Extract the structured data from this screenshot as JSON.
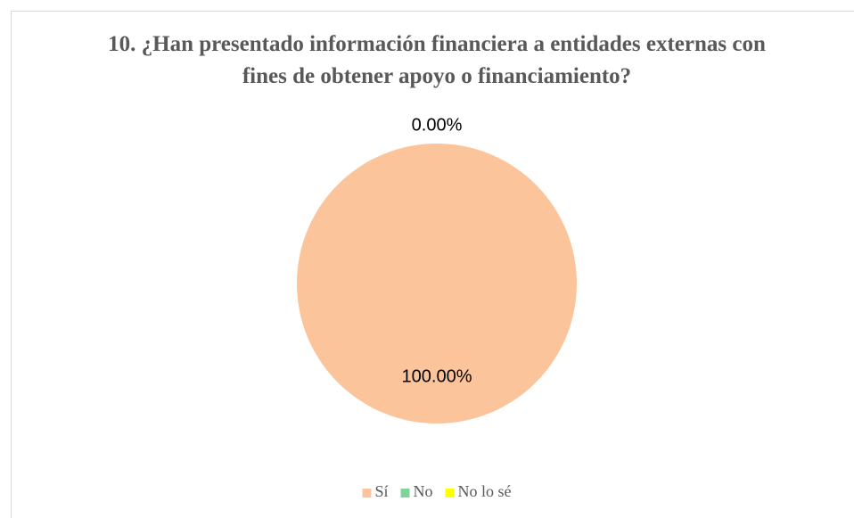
{
  "chart_data": {
    "type": "pie",
    "title": "10. ¿Han presentado información financiera a entidades externas con fines de obtener apoyo o financiamiento?",
    "categories": [
      "Sí",
      "No",
      "No lo sé"
    ],
    "values": [
      100,
      0,
      0
    ],
    "value_labels": [
      "100.00%",
      "0.00%",
      null
    ],
    "colors": [
      "#fbc49b",
      "#7fd49a",
      "#ffff00"
    ],
    "legend": "bottom"
  }
}
